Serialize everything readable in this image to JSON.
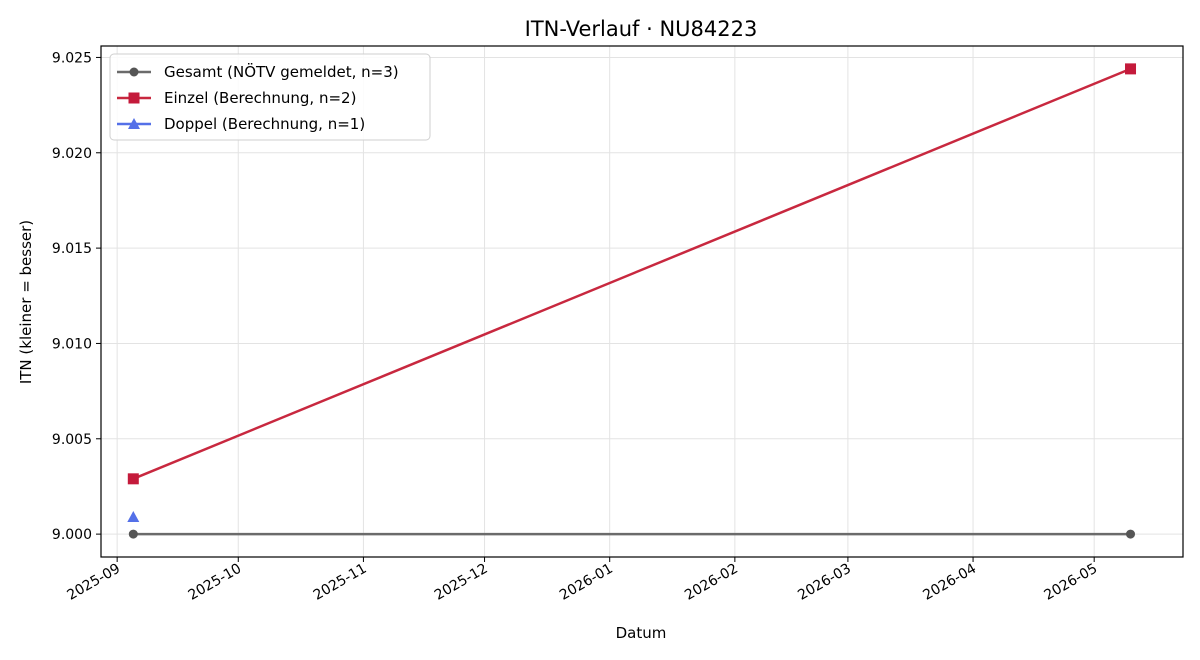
{
  "chart_data": {
    "type": "line",
    "title": "ITN-Verlauf · NU84223",
    "xlabel": "Datum",
    "ylabel": "ITN  (kleiner = besser)",
    "x_ticks": [
      "2025-09",
      "2025-10",
      "2025-11",
      "2025-12",
      "2026-01",
      "2026-02",
      "2026-03",
      "2026-04",
      "2026-05"
    ],
    "y_ticks": [
      "9.000",
      "9.005",
      "9.010",
      "9.015",
      "9.020",
      "9.025"
    ],
    "xlim": [
      "2025-08-28",
      "2026-05-23"
    ],
    "ylim": [
      8.9988,
      9.0256
    ],
    "grid": true,
    "legend_position": "top-left",
    "series": [
      {
        "name": "Gesamt (NÖTV gemeldet, n=3)",
        "color": "#6b6b6b",
        "marker_color": "#555555",
        "marker": "circle",
        "x": [
          "2025-09-05",
          "2026-05-10"
        ],
        "y": [
          9.0,
          9.0
        ]
      },
      {
        "name": "Einzel (Berechnung, n=2)",
        "color": "#c8283f",
        "marker_color": "#c41a3b",
        "marker": "square",
        "x": [
          "2025-09-05",
          "2026-05-10"
        ],
        "y": [
          9.0029,
          9.0244
        ]
      },
      {
        "name": "Doppel (Berechnung, n=1)",
        "color": "#5470e8",
        "marker_color": "#5470e8",
        "marker": "triangle",
        "x": [
          "2025-09-05"
        ],
        "y": [
          9.0009
        ]
      }
    ]
  }
}
